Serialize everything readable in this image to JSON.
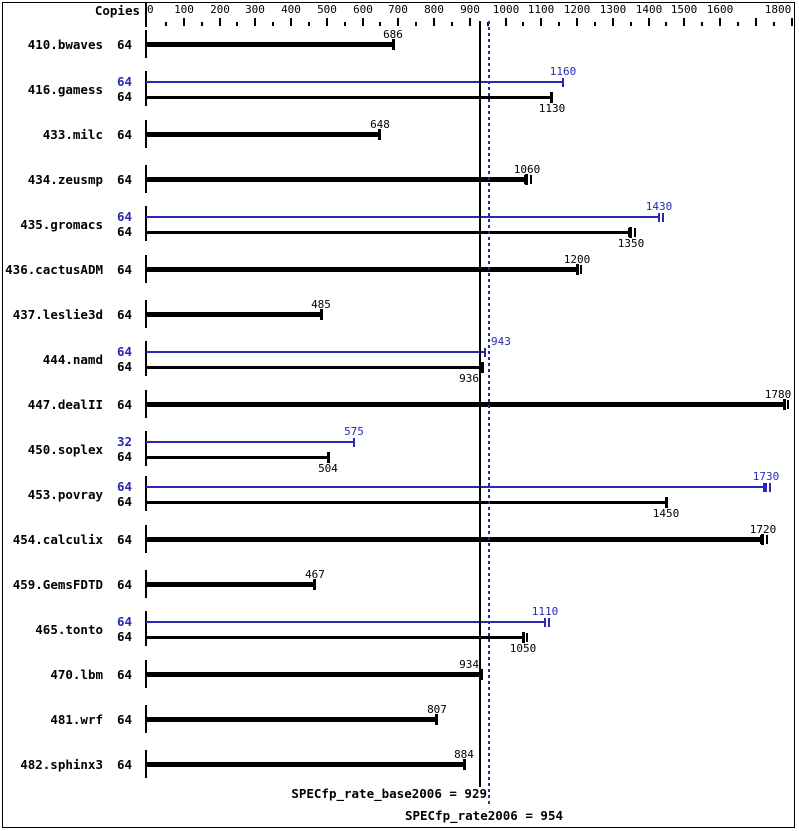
{
  "header": {
    "copies_label": "Copies"
  },
  "colors": {
    "base": "#000000",
    "peak": "#2929b4"
  },
  "footer": {
    "base_label": "SPECfp_rate_base2006 = 929",
    "peak_label": "SPECfp_rate2006 = 954"
  },
  "chart_data": {
    "type": "bar",
    "orientation": "horizontal",
    "title": "SPECfp_rate2006 result chart",
    "xlim": [
      0,
      1800
    ],
    "axis_tick_labels": [
      "0",
      "100",
      "200",
      "300",
      "400",
      "500",
      "600",
      "700",
      "800",
      "900",
      "1000",
      "1100",
      "1200",
      "1300",
      "1400",
      "1500",
      "1600",
      "1800"
    ],
    "minor_tick_step": 50,
    "major_tick_step": 100,
    "copies_column_header": "Copies",
    "legend": {
      "base_series_color_meaning": "base (black)",
      "peak_series_color_meaning": "peak (blue)"
    },
    "reference_lines": [
      {
        "name": "SPECfp_rate_base2006",
        "value": 929,
        "style": "solid",
        "color": "#000000"
      },
      {
        "name": "SPECfp_rate2006",
        "value": 954,
        "style": "dotted",
        "color": "#2929b4"
      }
    ],
    "benchmarks": [
      {
        "name": "410.bwaves",
        "bars": [
          {
            "series": "base",
            "copies": "64",
            "value": 686,
            "label_pos": "above",
            "runs_ticks": 1
          }
        ]
      },
      {
        "name": "416.gamess",
        "bars": [
          {
            "series": "peak",
            "copies": "64",
            "value": 1160,
            "label_pos": "above",
            "runs_ticks": 1
          },
          {
            "series": "base",
            "copies": "64",
            "value": 1130,
            "label_pos": "below",
            "runs_ticks": 1
          }
        ]
      },
      {
        "name": "433.milc",
        "bars": [
          {
            "series": "base",
            "copies": "64",
            "value": 648,
            "label_pos": "above",
            "runs_ticks": 1
          }
        ]
      },
      {
        "name": "434.zeusmp",
        "bars": [
          {
            "series": "base",
            "copies": "64",
            "value": 1060,
            "label_pos": "above",
            "runs_ticks": 3
          }
        ]
      },
      {
        "name": "435.gromacs",
        "bars": [
          {
            "series": "peak",
            "copies": "64",
            "value": 1430,
            "label_pos": "above",
            "runs_ticks": 2
          },
          {
            "series": "base",
            "copies": "64",
            "value": 1350,
            "label_pos": "below",
            "runs_ticks": 3
          }
        ]
      },
      {
        "name": "436.cactusADM",
        "bars": [
          {
            "series": "base",
            "copies": "64",
            "value": 1200,
            "label_pos": "above",
            "runs_ticks": 2
          }
        ]
      },
      {
        "name": "437.leslie3d",
        "bars": [
          {
            "series": "base",
            "copies": "64",
            "value": 485,
            "label_pos": "above",
            "runs_ticks": 1
          }
        ]
      },
      {
        "name": "444.namd",
        "bars": [
          {
            "series": "peak",
            "copies": "64",
            "value": 943,
            "label_pos": "above-right-of-line",
            "runs_ticks": 1
          },
          {
            "series": "base",
            "copies": "64",
            "value": 936,
            "label_pos": "below-left-of-line",
            "runs_ticks": 1
          }
        ]
      },
      {
        "name": "447.dealII",
        "bars": [
          {
            "series": "base",
            "copies": "64",
            "value": 1780,
            "label_pos": "above",
            "runs_ticks": 2
          }
        ]
      },
      {
        "name": "450.soplex",
        "bars": [
          {
            "series": "peak",
            "copies": "32",
            "value": 575,
            "label_pos": "above",
            "runs_ticks": 1
          },
          {
            "series": "base",
            "copies": "64",
            "value": 504,
            "label_pos": "below",
            "runs_ticks": 1
          }
        ]
      },
      {
        "name": "453.povray",
        "bars": [
          {
            "series": "peak",
            "copies": "64",
            "value": 1730,
            "label_pos": "above",
            "runs_ticks": 3
          },
          {
            "series": "base",
            "copies": "64",
            "value": 1450,
            "label_pos": "below",
            "runs_ticks": 1
          }
        ]
      },
      {
        "name": "454.calculix",
        "bars": [
          {
            "series": "base",
            "copies": "64",
            "value": 1720,
            "label_pos": "above",
            "runs_ticks": 3
          }
        ]
      },
      {
        "name": "459.GemsFDTD",
        "bars": [
          {
            "series": "base",
            "copies": "64",
            "value": 467,
            "label_pos": "above",
            "runs_ticks": 1
          }
        ]
      },
      {
        "name": "465.tonto",
        "bars": [
          {
            "series": "peak",
            "copies": "64",
            "value": 1110,
            "label_pos": "above",
            "runs_ticks": 2
          },
          {
            "series": "base",
            "copies": "64",
            "value": 1050,
            "label_pos": "below",
            "runs_ticks": 2
          }
        ]
      },
      {
        "name": "470.lbm",
        "bars": [
          {
            "series": "base",
            "copies": "64",
            "value": 934,
            "label_pos": "above-left-of-line",
            "runs_ticks": 1
          }
        ]
      },
      {
        "name": "481.wrf",
        "bars": [
          {
            "series": "base",
            "copies": "64",
            "value": 807,
            "label_pos": "above",
            "runs_ticks": 1
          }
        ]
      },
      {
        "name": "482.sphinx3",
        "bars": [
          {
            "series": "base",
            "copies": "64",
            "value": 884,
            "label_pos": "above",
            "runs_ticks": 1
          }
        ]
      }
    ],
    "spec_base_score": 929,
    "spec_peak_score": 954
  }
}
